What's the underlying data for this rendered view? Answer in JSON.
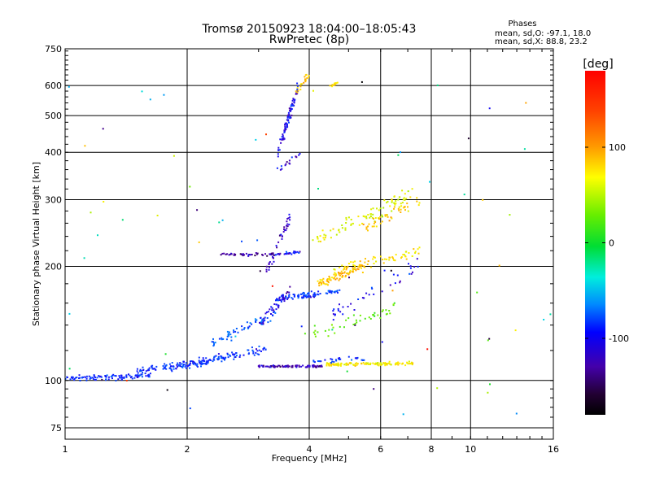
{
  "header": {
    "title_line1": "Tromsø 20150923 18:04:00–18:05:43",
    "title_line2": "RwPretec (8p)"
  },
  "info": {
    "label": "Phases",
    "o_stats": "mean, sd,O: -97.1, 18.0",
    "x_stats": "mean, sd,X:  88.8, 23.2"
  },
  "colorbar": {
    "unit_label": "[deg]",
    "range": [
      -180,
      180
    ],
    "ticks": [
      {
        "value": 100,
        "label": "100"
      },
      {
        "value": 0,
        "label": "0"
      },
      {
        "value": -100,
        "label": "-100"
      }
    ]
  },
  "chart_data": {
    "type": "scatter",
    "title": "Tromsø 20150923 18:04:00–18:05:43",
    "subtitle": "RwPretec (8p)",
    "xlabel": "Frequency [MHz]",
    "ylabel": "Stationary phase Virtual Height [km]",
    "xscale": "log",
    "yscale": "log",
    "xlim": [
      1,
      16
    ],
    "ylim": [
      70,
      750
    ],
    "xticks": [
      1,
      2,
      4,
      6,
      8,
      10,
      16
    ],
    "yticks": [
      75,
      100,
      200,
      300,
      400,
      500,
      600,
      750
    ],
    "grid": true,
    "color_variable": "phase",
    "color_unit": "[deg]",
    "color_range": [
      -180,
      180
    ],
    "clusters": [
      {
        "x": [
          1.0,
          1.7
        ],
        "y_start": 101,
        "y_end": 103,
        "phase": -100,
        "n": 110,
        "spread": 0.02
      },
      {
        "x": [
          1.5,
          2.3
        ],
        "y_start": 106,
        "y_end": 112,
        "phase": -100,
        "n": 80,
        "spread": 0.03
      },
      {
        "x": [
          1.8,
          3.2
        ],
        "y_start": 108,
        "y_end": 122,
        "phase": -100,
        "n": 110,
        "spread": 0.03
      },
      {
        "x": [
          2.3,
          3.3
        ],
        "y_start": 125,
        "y_end": 150,
        "phase": -85,
        "n": 60,
        "spread": 0.04
      },
      {
        "x": [
          3.0,
          4.3
        ],
        "y_start": 109,
        "y_end": 109,
        "phase": -125,
        "n": 90,
        "spread": 0.008
      },
      {
        "x": [
          4.4,
          7.2
        ],
        "y_start": 110,
        "y_end": 111,
        "phase": 95,
        "n": 120,
        "spread": 0.012
      },
      {
        "x": [
          4.0,
          5.5
        ],
        "y_start": 112,
        "y_end": 114,
        "phase": -100,
        "n": 30,
        "spread": 0.02
      },
      {
        "x": [
          2.4,
          3.3
        ],
        "y_start": 215,
        "y_end": 215,
        "phase": -130,
        "n": 45,
        "spread": 0.01
      },
      {
        "x": [
          3.3,
          3.8
        ],
        "y_start": 215,
        "y_end": 218,
        "phase": -110,
        "n": 25,
        "spread": 0.01
      },
      {
        "x": [
          3.3,
          4.2
        ],
        "y_start": 163,
        "y_end": 168,
        "phase": -105,
        "n": 50,
        "spread": 0.012
      },
      {
        "x": [
          3.4,
          4.8
        ],
        "y_start": 167,
        "y_end": 172,
        "phase": -95,
        "n": 50,
        "spread": 0.015
      },
      {
        "x": [
          4.2,
          5.5
        ],
        "y_start": 180,
        "y_end": 200,
        "phase": 110,
        "n": 80,
        "spread": 0.03
      },
      {
        "x": [
          4.6,
          7.5
        ],
        "y_start": 195,
        "y_end": 220,
        "phase": 100,
        "n": 70,
        "spread": 0.04
      },
      {
        "x": [
          3.0,
          3.6
        ],
        "y_start": 140,
        "y_end": 175,
        "phase": -115,
        "n": 40,
        "spread": 0.04
      },
      {
        "x": [
          3.1,
          3.6
        ],
        "y_start": 190,
        "y_end": 270,
        "phase": -125,
        "n": 40,
        "spread": 0.05
      },
      {
        "x": [
          3.35,
          3.75
        ],
        "y_start": 400,
        "y_end": 590,
        "phase": -115,
        "n": 90,
        "spread": 0.05
      },
      {
        "x": [
          3.7,
          4.0
        ],
        "y_start": 580,
        "y_end": 640,
        "phase": 105,
        "n": 20,
        "spread": 0.03
      },
      {
        "x": [
          4.5,
          4.7
        ],
        "y_start": 598,
        "y_end": 610,
        "phase": 100,
        "n": 12,
        "spread": 0.01
      },
      {
        "x": [
          3.3,
          3.8
        ],
        "y_start": 355,
        "y_end": 395,
        "phase": -120,
        "n": 15,
        "spread": 0.03
      },
      {
        "x": [
          4.0,
          7.2
        ],
        "y_start": 230,
        "y_end": 310,
        "phase": 80,
        "n": 90,
        "spread": 0.07
      },
      {
        "x": [
          5.5,
          7.5
        ],
        "y_start": 250,
        "y_end": 300,
        "phase": 110,
        "n": 40,
        "spread": 0.05
      },
      {
        "x": [
          3.8,
          6.5
        ],
        "y_start": 130,
        "y_end": 155,
        "phase": 40,
        "n": 45,
        "spread": 0.06
      },
      {
        "x": [
          4.5,
          7.5
        ],
        "y_start": 150,
        "y_end": 200,
        "phase": -110,
        "n": 40,
        "spread": 0.06
      },
      {
        "x": [
          1.0,
          16.0
        ],
        "y_start": 80,
        "y_end": 650,
        "phase": 0,
        "n": 70,
        "spread": 0.0
      }
    ]
  }
}
